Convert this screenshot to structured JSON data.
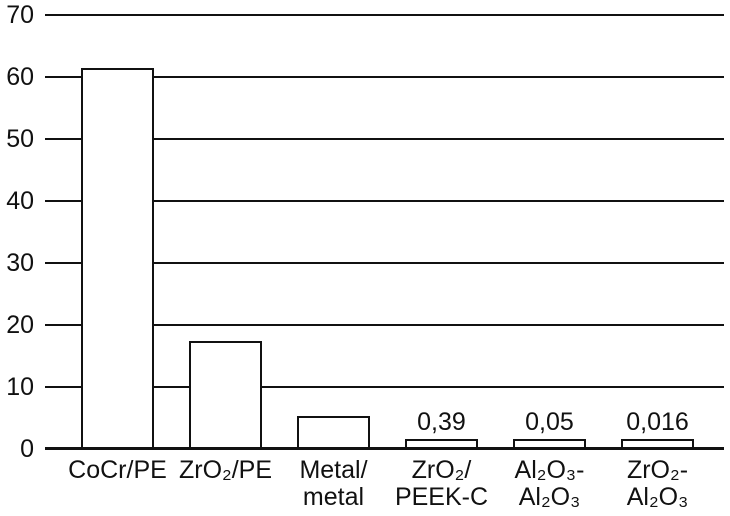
{
  "chart_data": {
    "type": "bar",
    "title": "",
    "xlabel": "",
    "ylabel": "",
    "categories": [
      "CoCr/PE",
      "ZrO₂/PE",
      "Metal/\nmetal",
      "ZrO₂/\nPEEK-C",
      "Al₂O₃-\nAl₂O₃",
      "ZrO₂-\nAl₂O₃"
    ],
    "values": [
      61.5,
      17.5,
      5.3,
      0.39,
      0.05,
      0.016
    ],
    "value_labels": [
      "",
      "",
      "",
      "0,39",
      "0,05",
      "0,016"
    ],
    "yticks": [
      "0",
      "10",
      "20",
      "30",
      "40",
      "50",
      "60",
      "70"
    ],
    "ytick_values": [
      0,
      10,
      20,
      30,
      40,
      50,
      60,
      70
    ],
    "ylim": [
      0,
      70
    ],
    "grid": "horizontal-gridlines-full-width",
    "legend_position": "none",
    "decimal_separator": ",",
    "colors": {
      "bar_fill": "#ffffff",
      "bar_border": "#111111",
      "line": "#111111",
      "text": "#111111",
      "background": "#ffffff"
    }
  }
}
